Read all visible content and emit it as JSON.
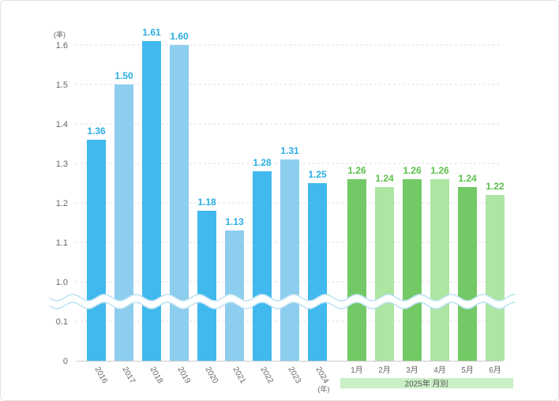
{
  "chart_data": {
    "type": "bar",
    "y_unit_label": "(率)",
    "y_ticks": [
      "0",
      "0.1",
      "1.0",
      "1.1",
      "1.2",
      "1.3",
      "1.4",
      "1.5",
      "1.6"
    ],
    "axis_break": {
      "from": 0.1,
      "to": 1.0
    },
    "ylim": [
      0,
      1.6
    ],
    "grid": true,
    "series": [
      {
        "categories": [
          "2016",
          "2017",
          "2018",
          "2019",
          "2020",
          "2021",
          "2022",
          "2023",
          "2024"
        ],
        "values": [
          1.36,
          1.5,
          1.61,
          1.6,
          1.18,
          1.13,
          1.28,
          1.31,
          1.25
        ],
        "value_labels": [
          "1.36",
          "1.50",
          "1.61",
          "1.60",
          "1.18",
          "1.13",
          "1.28",
          "1.31",
          "1.25"
        ],
        "colors": [
          "#41b9ee",
          "#8dcdee"
        ],
        "label_color": "#2aaee3",
        "axis_unit": "(年)"
      },
      {
        "categories": [
          "1月",
          "2月",
          "3月",
          "4月",
          "5月",
          "6月"
        ],
        "values": [
          1.26,
          1.24,
          1.26,
          1.26,
          1.24,
          1.22
        ],
        "value_labels": [
          "1.26",
          "1.24",
          "1.26",
          "1.26",
          "1.24",
          "1.22"
        ],
        "colors": [
          "#73c966",
          "#ade5a3"
        ],
        "label_color": "#5cbf4b",
        "group_label": "2025年 月別",
        "group_label_bg": "#c9efc5"
      }
    ]
  }
}
